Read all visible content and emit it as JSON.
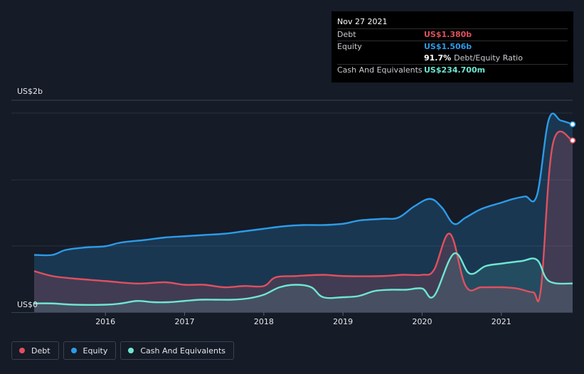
{
  "tooltip": {
    "date": "Nov 27 2021",
    "debt_label": "Debt",
    "debt_value": "US$1.380b",
    "equity_label": "Equity",
    "equity_value": "US$1.506b",
    "ratio_value": "91.7%",
    "ratio_label": "Debt/Equity Ratio",
    "cash_label": "Cash And Equivalents",
    "cash_value": "US$234.700m"
  },
  "legend": [
    {
      "label": "Debt",
      "color": "#e0505f"
    },
    {
      "label": "Equity",
      "color": "#2d9be8"
    },
    {
      "label": "Cash And Equivalents",
      "color": "#6fe6d2"
    }
  ],
  "chart_data": {
    "type": "area",
    "y_top_label": "US$2b",
    "y_bottom_label": "US$0",
    "ylim": [
      0,
      1.6
    ],
    "xlim": [
      2015.1,
      2021.9
    ],
    "x_ticks": [
      "2016",
      "2017",
      "2018",
      "2019",
      "2020",
      "2021"
    ],
    "x_tick_values": [
      2016,
      2017,
      2018,
      2019,
      2020,
      2021
    ],
    "grid": true,
    "legend_position": "bottom-left",
    "series": [
      {
        "name": "Equity",
        "color": "#2d9be8",
        "points": [
          [
            2015.1,
            0.46
          ],
          [
            2015.33,
            0.46
          ],
          [
            2015.5,
            0.5
          ],
          [
            2015.75,
            0.52
          ],
          [
            2016.0,
            0.53
          ],
          [
            2016.2,
            0.56
          ],
          [
            2016.5,
            0.58
          ],
          [
            2016.75,
            0.6
          ],
          [
            2017.0,
            0.61
          ],
          [
            2017.25,
            0.62
          ],
          [
            2017.5,
            0.63
          ],
          [
            2017.75,
            0.65
          ],
          [
            2018.0,
            0.67
          ],
          [
            2018.25,
            0.69
          ],
          [
            2018.5,
            0.7
          ],
          [
            2018.75,
            0.7
          ],
          [
            2019.0,
            0.71
          ],
          [
            2019.15,
            0.73
          ],
          [
            2019.25,
            0.74
          ],
          [
            2019.5,
            0.75
          ],
          [
            2019.7,
            0.76
          ],
          [
            2019.9,
            0.85
          ],
          [
            2020.1,
            0.91
          ],
          [
            2020.25,
            0.84
          ],
          [
            2020.4,
            0.71
          ],
          [
            2020.55,
            0.76
          ],
          [
            2020.75,
            0.83
          ],
          [
            2021.0,
            0.88
          ],
          [
            2021.15,
            0.91
          ],
          [
            2021.3,
            0.93
          ],
          [
            2021.45,
            0.94
          ],
          [
            2021.6,
            1.55
          ],
          [
            2021.75,
            1.54
          ],
          [
            2021.9,
            1.51
          ]
        ]
      },
      {
        "name": "Debt",
        "color": "#e0505f",
        "points": [
          [
            2015.1,
            0.33
          ],
          [
            2015.33,
            0.29
          ],
          [
            2015.6,
            0.27
          ],
          [
            2016.0,
            0.25
          ],
          [
            2016.4,
            0.23
          ],
          [
            2016.75,
            0.24
          ],
          [
            2017.0,
            0.22
          ],
          [
            2017.25,
            0.22
          ],
          [
            2017.5,
            0.2
          ],
          [
            2017.75,
            0.21
          ],
          [
            2018.0,
            0.21
          ],
          [
            2018.15,
            0.28
          ],
          [
            2018.4,
            0.29
          ],
          [
            2018.75,
            0.3
          ],
          [
            2019.0,
            0.29
          ],
          [
            2019.5,
            0.29
          ],
          [
            2019.75,
            0.3
          ],
          [
            2020.0,
            0.3
          ],
          [
            2020.15,
            0.34
          ],
          [
            2020.35,
            0.63
          ],
          [
            2020.55,
            0.21
          ],
          [
            2020.75,
            0.2
          ],
          [
            2021.0,
            0.2
          ],
          [
            2021.2,
            0.19
          ],
          [
            2021.4,
            0.16
          ],
          [
            2021.5,
            0.19
          ],
          [
            2021.65,
            1.35
          ],
          [
            2021.9,
            1.38
          ]
        ]
      },
      {
        "name": "Cash And Equivalents",
        "color": "#6fe6d2",
        "points": [
          [
            2015.1,
            0.07
          ],
          [
            2015.33,
            0.07
          ],
          [
            2015.6,
            0.06
          ],
          [
            2016.0,
            0.06
          ],
          [
            2016.2,
            0.07
          ],
          [
            2016.4,
            0.09
          ],
          [
            2016.6,
            0.08
          ],
          [
            2016.8,
            0.08
          ],
          [
            2017.0,
            0.09
          ],
          [
            2017.2,
            0.1
          ],
          [
            2017.4,
            0.1
          ],
          [
            2017.6,
            0.1
          ],
          [
            2017.8,
            0.11
          ],
          [
            2018.0,
            0.14
          ],
          [
            2018.2,
            0.2
          ],
          [
            2018.4,
            0.22
          ],
          [
            2018.6,
            0.2
          ],
          [
            2018.75,
            0.12
          ],
          [
            2019.0,
            0.12
          ],
          [
            2019.2,
            0.13
          ],
          [
            2019.4,
            0.17
          ],
          [
            2019.6,
            0.18
          ],
          [
            2019.8,
            0.18
          ],
          [
            2020.0,
            0.19
          ],
          [
            2020.15,
            0.13
          ],
          [
            2020.4,
            0.47
          ],
          [
            2020.6,
            0.31
          ],
          [
            2020.8,
            0.37
          ],
          [
            2021.0,
            0.39
          ],
          [
            2021.25,
            0.41
          ],
          [
            2021.45,
            0.42
          ],
          [
            2021.6,
            0.25
          ],
          [
            2021.9,
            0.23
          ]
        ]
      }
    ]
  }
}
